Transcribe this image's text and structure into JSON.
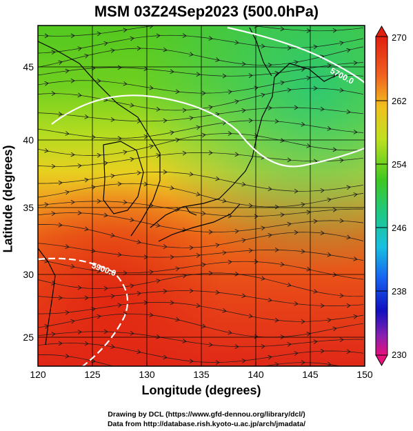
{
  "title": "MSM 03Z24Sep2023 (500.0hPa)",
  "xlabel": "Longitude (degrees)",
  "ylabel": "Latitude  (degrees)",
  "credits": {
    "line1": "Drawing by DCL (https://www.gfd-dennou.org/library/dcl/)",
    "line2": "Data from http://database.rish.kyoto-u.ac.jp/arch/jmadata/"
  },
  "map": {
    "lon_range": [
      120,
      150
    ],
    "lat_range": [
      22.4,
      47.6
    ],
    "x_ticks": [
      "120",
      "125",
      "130",
      "135",
      "140",
      "145",
      "150"
    ],
    "y_ticks": [
      "25",
      "30",
      "35",
      "40",
      "45"
    ],
    "contour_labels": [
      "5700.0",
      "5900.0"
    ],
    "shading": "temperature K",
    "vectors": "streamlines"
  },
  "colorbar": {
    "range": [
      230,
      270
    ],
    "tick_labels": [
      "270",
      "262",
      "254",
      "246",
      "238",
      "230"
    ],
    "colors": [
      "#e8107a",
      "#8a1fb0",
      "#1010c0",
      "#1a6cf0",
      "#18c8d8",
      "#20c860",
      "#4ad020",
      "#b8e020",
      "#f0e020",
      "#f0a020",
      "#e84818",
      "#e02010"
    ]
  }
}
